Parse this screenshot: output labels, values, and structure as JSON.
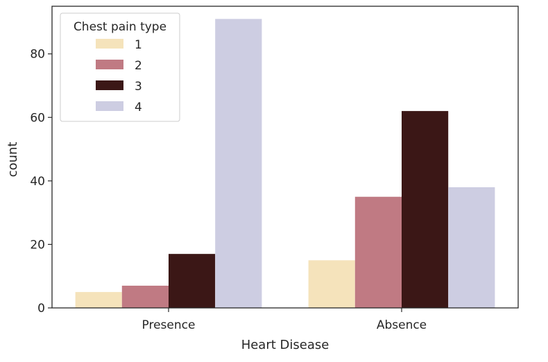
{
  "chart_data": {
    "type": "bar",
    "xlabel": "Heart Disease",
    "ylabel": "count",
    "categories": [
      "Presence",
      "Absence"
    ],
    "ylim": [
      0,
      95
    ],
    "yticks": [
      0,
      20,
      40,
      60,
      80
    ],
    "grid": false,
    "legend": {
      "title": "Chest pain type",
      "placement": "top-left"
    },
    "series": [
      {
        "name": "1",
        "color": "#f5e3bb",
        "values": [
          5,
          15
        ]
      },
      {
        "name": "2",
        "color": "#c07a83",
        "values": [
          7,
          35
        ]
      },
      {
        "name": "3",
        "color": "#3b1716",
        "values": [
          17,
          62
        ]
      },
      {
        "name": "4",
        "color": "#cdcde2",
        "values": [
          91,
          38
        ]
      }
    ]
  }
}
